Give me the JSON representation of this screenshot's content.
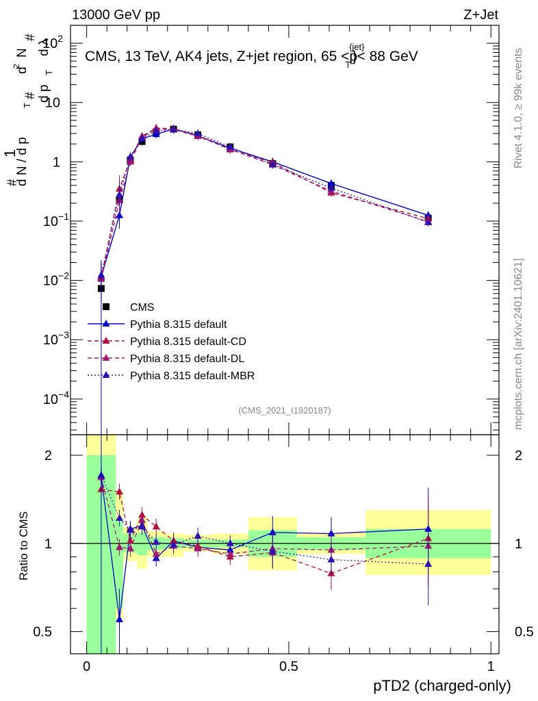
{
  "header": {
    "energy_label": "13000 GeV pp",
    "process_label": "Z+Jet",
    "plot_title": "CMS, 13 TeV, AK4 jets, Z+jet region, 65 <p",
    "title_super": "{jet}",
    "title_sub": "T",
    "title_suffix": "}< 88 GeV",
    "analysis_id": "(CMS_2021_I1920187)",
    "side_version": "Rivet 4.1.0, ≥ 99k events",
    "side_source": "mcplots.cern.ch [arXiv:2401.10621]"
  },
  "axes": {
    "y_label_parts": [
      "1",
      "d N / d p",
      "T",
      "#",
      "d p",
      "T",
      "#",
      "d",
      "N",
      "2",
      "d λ",
      "#"
    ],
    "ratio_label": "Ratio to CMS",
    "x_label": "pTD2 (charged-only)"
  },
  "chart_data": [
    {
      "type": "line",
      "panel": "main",
      "y_scale": "log",
      "xlim": [
        -0.04,
        1.02
      ],
      "ylim": [
        2.5e-05,
        200
      ],
      "y_ticks": [
        {
          "value": 100,
          "label": "10",
          "exp": "2"
        },
        {
          "value": 10,
          "label": "10",
          "exp": ""
        },
        {
          "value": 1,
          "label": "1",
          "exp": ""
        },
        {
          "value": 0.1,
          "label": "10",
          "exp": "−1"
        },
        {
          "value": 0.01,
          "label": "10",
          "exp": "−2"
        },
        {
          "value": 0.001,
          "label": "10",
          "exp": "−3"
        },
        {
          "value": 0.0001,
          "label": "10",
          "exp": "−4"
        }
      ],
      "x": [
        0.036,
        0.081,
        0.108,
        0.137,
        0.172,
        0.215,
        0.275,
        0.355,
        0.46,
        0.605,
        0.845
      ],
      "series": [
        {
          "name": "CMS",
          "color": "#000000",
          "marker": "square",
          "line": "none",
          "values": [
            0.0073,
            0.23,
            1.07,
            2.2,
            3.2,
            3.55,
            2.85,
            1.78,
            0.93,
            0.4,
            0.112
          ]
        },
        {
          "name": "Pythia 8.315 default",
          "color": "#0000cc",
          "marker": "triangle",
          "line": "solid",
          "values": [
            0.0115,
            0.125,
            1.2,
            2.45,
            2.9,
            3.6,
            2.75,
            1.7,
            1.0,
            0.43,
            0.125
          ]
        },
        {
          "name": "Pythia 8.315 default-CD",
          "color": "#b0103a",
          "marker": "triangle",
          "line": "dashed",
          "values": [
            0.011,
            0.35,
            1.1,
            2.7,
            3.7,
            3.6,
            2.8,
            1.6,
            0.98,
            0.3,
            0.11
          ]
        },
        {
          "name": "Pythia 8.315 default-DL",
          "color": "#a01870",
          "marker": "triangle",
          "line": "dashed",
          "values": [
            0.0105,
            0.22,
            1.0,
            2.6,
            3.6,
            3.5,
            2.7,
            1.63,
            0.89,
            0.32,
            0.098
          ]
        },
        {
          "name": "Pythia 8.315 default-MBR",
          "color": "#3010b0",
          "marker": "triangle",
          "line": "dotted",
          "values": [
            0.0123,
            0.28,
            1.22,
            2.5,
            3.3,
            3.5,
            3.0,
            1.78,
            0.9,
            0.36,
            0.095
          ]
        }
      ]
    },
    {
      "type": "line",
      "panel": "ratio",
      "y_scale": "log",
      "ylim": [
        0.42,
        2.35
      ],
      "y_ticks": [
        0.5,
        1,
        2
      ],
      "bin_edges": [
        0.0,
        0.072,
        0.09,
        0.125,
        0.15,
        0.195,
        0.24,
        0.31,
        0.4,
        0.52,
        0.69,
        1.0
      ],
      "band_inner": [
        [
          0.3,
          2.0
        ],
        [
          0.6,
          1.22
        ],
        [
          0.93,
          1.08
        ],
        [
          0.91,
          1.09
        ],
        [
          0.95,
          1.05
        ],
        [
          0.96,
          1.04
        ],
        [
          0.97,
          1.03
        ],
        [
          0.97,
          1.03
        ],
        [
          0.9,
          1.11
        ],
        [
          0.95,
          1.05
        ],
        [
          0.89,
          1.12
        ]
      ],
      "band_outer": [
        [
          0.3,
          2.35
        ],
        [
          0.55,
          1.5
        ],
        [
          0.87,
          1.14
        ],
        [
          0.82,
          1.22
        ],
        [
          0.9,
          1.1
        ],
        [
          0.9,
          1.08
        ],
        [
          0.94,
          1.07
        ],
        [
          0.92,
          1.08
        ],
        [
          0.81,
          1.23
        ],
        [
          0.92,
          1.09
        ],
        [
          0.78,
          1.3
        ]
      ],
      "x": [
        0.036,
        0.081,
        0.108,
        0.137,
        0.172,
        0.215,
        0.275,
        0.355,
        0.46,
        0.605,
        0.845
      ],
      "series": [
        {
          "name": "Pythia 8.315 default",
          "color": "#0000cc",
          "line": "solid",
          "values": [
            1.7,
            0.55,
            1.12,
            1.15,
            0.89,
            1.02,
            0.97,
            0.95,
            1.09,
            1.08,
            1.12
          ]
        },
        {
          "name": "Pythia 8.315 default-CD",
          "color": "#b0103a",
          "line": "dashed",
          "values": [
            1.53,
            1.5,
            1.02,
            1.25,
            1.14,
            1.02,
            0.98,
            0.9,
            0.93,
            0.79,
            1.04
          ]
        },
        {
          "name": "Pythia 8.315 default-DL",
          "color": "#a01870",
          "line": "dashed",
          "values": [
            1.68,
            0.97,
            0.96,
            1.2,
            0.92,
            0.98,
            0.96,
            0.92,
            0.96,
            0.95,
            0.98
          ]
        },
        {
          "name": "Pythia 8.315 default-MBR",
          "color": "#3010b0",
          "line": "dotted",
          "values": [
            1.71,
            1.22,
            1.11,
            1.14,
            1.01,
            0.99,
            1.06,
            1.0,
            0.94,
            0.88,
            0.85
          ]
        }
      ]
    }
  ],
  "x_ticks": [
    {
      "value": 0,
      "label": "0"
    },
    {
      "value": 0.5,
      "label": "0.5"
    },
    {
      "value": 1,
      "label": "1"
    }
  ],
  "colors": {
    "band_inner": "#99ff99",
    "band_outer": "#ffff99",
    "frame": "#000000"
  }
}
